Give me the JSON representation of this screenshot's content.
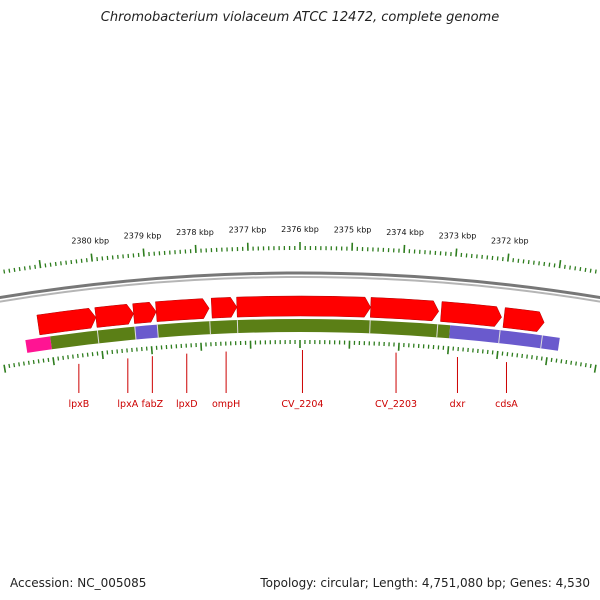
{
  "title": "Chromobacterium violaceum ATCC 12472, complete genome",
  "footer": {
    "accession": "Accession: NC_005085",
    "stats": "Topology: circular; Length: 4,751,080 bp; Genes: 4,530"
  },
  "colors": {
    "gene_red": "#ff0000",
    "track_green": "#5b7f16",
    "track_blue": "#6a5acd",
    "track_magenta": "#ff1493",
    "backbone_gray": "#8a8a8a",
    "tick_green": "#2e7d1e",
    "label_red": "#cc0000"
  },
  "scale": {
    "unit": "kbp",
    "labels": [
      "2380 kbp",
      "2379 kbp",
      "2378 kbp",
      "2377 kbp",
      "2376 kbp",
      "2375 kbp",
      "2374 kbp",
      "2373 kbp",
      "2372 kbp"
    ],
    "label_positions_kbp": [
      2380,
      2379,
      2378,
      2377,
      2376,
      2375,
      2374,
      2373,
      2372
    ]
  },
  "genes": [
    {
      "name": "lpxB",
      "start_kbp": 2380.05,
      "end_kbp": 2381.2
    },
    {
      "name": "lpxA",
      "start_kbp": 2379.3,
      "end_kbp": 2380.05
    },
    {
      "name": "fabZ",
      "start_kbp": 2378.85,
      "end_kbp": 2379.3
    },
    {
      "name": "lpxD",
      "start_kbp": 2377.8,
      "end_kbp": 2378.85
    },
    {
      "name": "ompH",
      "start_kbp": 2377.25,
      "end_kbp": 2377.75
    },
    {
      "name": "CV_2204",
      "start_kbp": 2374.6,
      "end_kbp": 2377.25
    },
    {
      "name": "CV_2203",
      "start_kbp": 2373.25,
      "end_kbp": 2374.6
    },
    {
      "name": "dxr",
      "start_kbp": 2372.0,
      "end_kbp": 2373.2
    },
    {
      "name": "cdsA",
      "start_kbp": 2371.15,
      "end_kbp": 2371.95
    }
  ],
  "gene_label_positions_kbp": [
    {
      "name": "lpxB",
      "kbp": 2380.5
    },
    {
      "name": "lpxA",
      "kbp": 2379.5
    },
    {
      "name": "fabZ",
      "kbp": 2379.0
    },
    {
      "name": "lpxD",
      "kbp": 2378.3
    },
    {
      "name": "ompH",
      "kbp": 2377.5
    },
    {
      "name": "CV_2204",
      "kbp": 2375.95
    },
    {
      "name": "CV_2203",
      "kbp": 2374.05
    },
    {
      "name": "dxr",
      "kbp": 2372.8
    },
    {
      "name": "cdsA",
      "kbp": 2371.8
    }
  ],
  "category_track": [
    {
      "start_kbp": 2381.0,
      "end_kbp": 2381.5,
      "color": "#ff1493"
    },
    {
      "start_kbp": 2379.3,
      "end_kbp": 2381.0,
      "color": "#5b7f16"
    },
    {
      "start_kbp": 2378.85,
      "end_kbp": 2379.3,
      "color": "#6a5acd"
    },
    {
      "start_kbp": 2373.0,
      "end_kbp": 2378.85,
      "color": "#5b7f16"
    },
    {
      "start_kbp": 2370.8,
      "end_kbp": 2373.0,
      "color": "#6a5acd"
    }
  ]
}
